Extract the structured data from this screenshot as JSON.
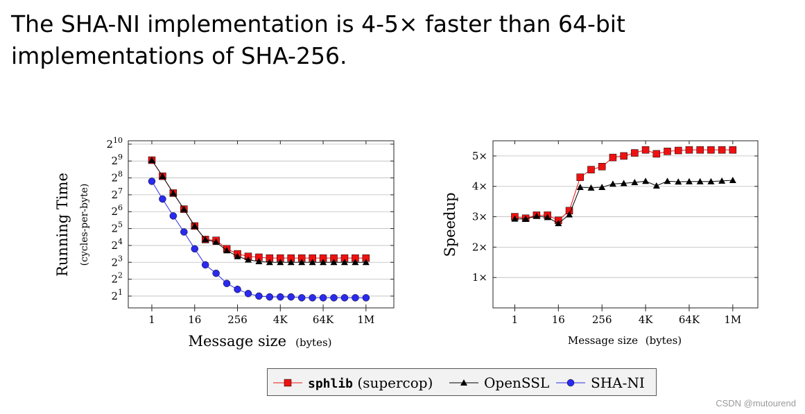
{
  "headline": "The SHA-NI implementation is 4-5× faster than 64-bit implementations of SHA-256.",
  "watermark": "CSDN @mutourend",
  "colors": {
    "sphlib": "#ee1111",
    "openssl": "#000000",
    "shani": "#2a2aee",
    "grid": "#bbbbbb"
  },
  "legend": {
    "entries": [
      {
        "name": "sphlib",
        "suffix": " (supercop)",
        "color": "#ee1111",
        "marker": "square"
      },
      {
        "name": "OpenSSL",
        "suffix": "",
        "color": "#000000",
        "marker": "triangle"
      },
      {
        "name": "SHA-NI",
        "suffix": "",
        "color": "#2a2aee",
        "marker": "circle"
      }
    ]
  },
  "chart_data": [
    {
      "type": "line",
      "ylabel": "Running Time",
      "ylabel_sub": "(cycles-per-byte)",
      "xlabel": "Message size",
      "xlabel_unit": "(bytes)",
      "x_scale": "log2",
      "y_scale": "log2",
      "xlim_log2": [
        -2.2,
        22.6
      ],
      "ylim_log2": [
        0.3,
        10.2
      ],
      "x_ticks": [
        0,
        4,
        8,
        12,
        16,
        20
      ],
      "x_tick_labels": [
        "1",
        "16",
        "256",
        "4K",
        "64K",
        "1M"
      ],
      "y_ticks": [
        1,
        2,
        3,
        4,
        5,
        6,
        7,
        8,
        9,
        10
      ],
      "y_tick_base": "2",
      "y_tick_exponents": [
        "1",
        "2",
        "3",
        "4",
        "5",
        "6",
        "7",
        "8",
        "9",
        "10"
      ],
      "grid": "horizontal",
      "x_log2": [
        0,
        1,
        2,
        3,
        4,
        5,
        6,
        7,
        8,
        9,
        10,
        11,
        12,
        13,
        14,
        15,
        16,
        17,
        18,
        19,
        20
      ],
      "series": [
        {
          "name": "sphlib",
          "marker": "square",
          "color": "#ee1111",
          "values_log2": [
            9.05,
            8.1,
            7.1,
            6.15,
            5.15,
            4.35,
            4.3,
            3.8,
            3.5,
            3.35,
            3.3,
            3.25,
            3.25,
            3.25,
            3.25,
            3.25,
            3.25,
            3.25,
            3.25,
            3.25,
            3.25
          ]
        },
        {
          "name": "OpenSSL",
          "marker": "triangle",
          "color": "#000000",
          "values_log2": [
            9.05,
            8.1,
            7.1,
            6.15,
            5.15,
            4.35,
            4.2,
            3.7,
            3.35,
            3.15,
            3.05,
            3.0,
            3.0,
            3.0,
            3.0,
            3.0,
            3.0,
            3.0,
            3.0,
            3.0,
            3.0
          ]
        },
        {
          "name": "SHA-NI",
          "marker": "circle",
          "color": "#2a2aee",
          "values_log2": [
            7.8,
            6.75,
            5.75,
            4.8,
            3.8,
            2.85,
            2.35,
            1.75,
            1.4,
            1.15,
            1.0,
            0.95,
            0.95,
            0.95,
            0.9,
            0.9,
            0.9,
            0.9,
            0.9,
            0.9,
            0.9
          ]
        }
      ]
    },
    {
      "type": "line",
      "ylabel": "Speedup",
      "xlabel": "Message size",
      "xlabel_unit": "(bytes)",
      "x_scale": "log2",
      "xlim_log2": [
        -2.0,
        22.3
      ],
      "ylim": [
        0.0,
        5.5
      ],
      "x_ticks": [
        0,
        4,
        8,
        12,
        16,
        20
      ],
      "x_tick_labels": [
        "1",
        "16",
        "256",
        "4K",
        "64K",
        "1M"
      ],
      "y_ticks": [
        1,
        2,
        3,
        4,
        5
      ],
      "y_tick_labels": [
        "1×",
        "2×",
        "3×",
        "4×",
        "5×"
      ],
      "grid": "horizontal",
      "x_log2": [
        0,
        1,
        2,
        3,
        4,
        5,
        6,
        7,
        8,
        9,
        10,
        11,
        12,
        13,
        14,
        15,
        16,
        17,
        18,
        19,
        20
      ],
      "series": [
        {
          "name": "sphlib",
          "marker": "square",
          "color": "#ee1111",
          "values": [
            3.0,
            2.95,
            3.05,
            3.05,
            2.88,
            3.2,
            4.3,
            4.55,
            4.65,
            4.95,
            5.0,
            5.1,
            5.2,
            5.07,
            5.15,
            5.18,
            5.2,
            5.2,
            5.2,
            5.2,
            5.2
          ]
        },
        {
          "name": "OpenSSL",
          "marker": "triangle",
          "color": "#000000",
          "values": [
            2.93,
            2.93,
            3.02,
            2.98,
            2.78,
            3.07,
            3.97,
            3.95,
            3.97,
            4.08,
            4.1,
            4.13,
            4.17,
            4.02,
            4.17,
            4.15,
            4.16,
            4.16,
            4.16,
            4.18,
            4.2
          ]
        }
      ]
    }
  ]
}
